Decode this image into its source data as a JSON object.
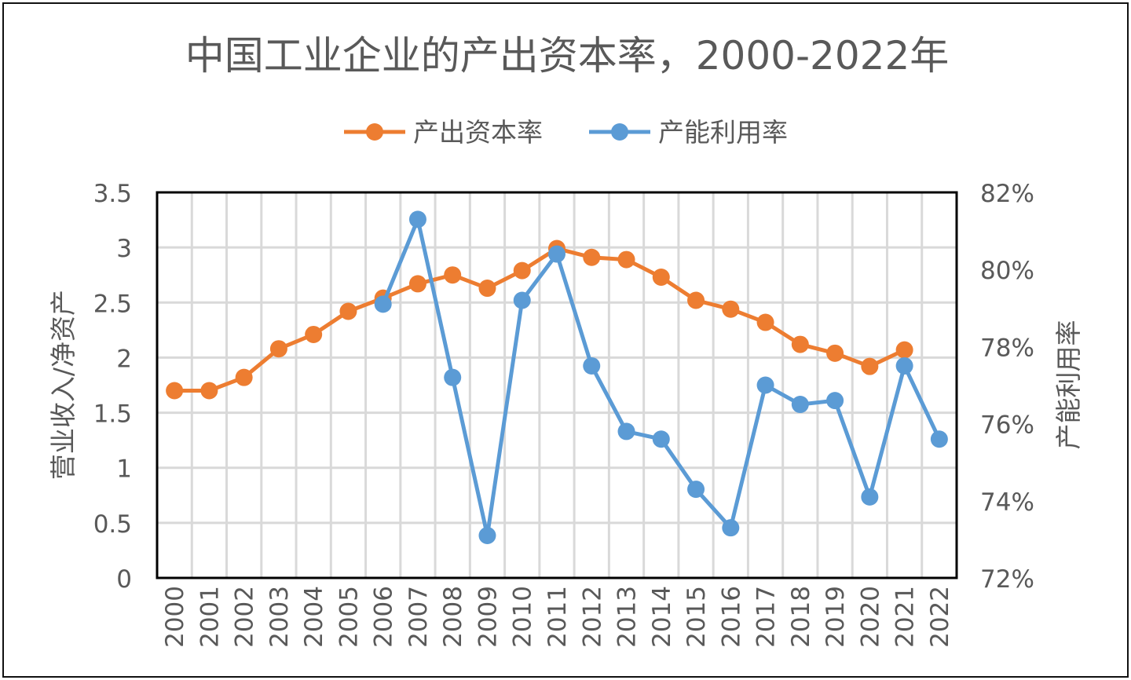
{
  "chart_data": {
    "type": "line",
    "title": "中国工业企业的产出资本率，2000-2022年",
    "categories": [
      "2000",
      "2001",
      "2002",
      "2003",
      "2004",
      "2005",
      "2006",
      "2007",
      "2008",
      "2009",
      "2010",
      "2011",
      "2012",
      "2013",
      "2014",
      "2015",
      "2016",
      "2017",
      "2018",
      "2019",
      "2020",
      "2021",
      "2022"
    ],
    "ylabel_left": "营业收入/净资产",
    "ylabel_right": "产能利用率",
    "ylim_left": [
      0,
      3.5
    ],
    "yticks_left": [
      "0",
      "0.5",
      "1",
      "1.5",
      "2",
      "2.5",
      "3",
      "3.5"
    ],
    "ylim_right": [
      72,
      82
    ],
    "yticks_right": [
      "72%",
      "74%",
      "76%",
      "78%",
      "80%",
      "82%"
    ],
    "grid": true,
    "legend_position": "top",
    "series": [
      {
        "name": "产出资本率",
        "axis": "left",
        "color": "#ED7D31",
        "values": [
          1.7,
          1.7,
          1.82,
          2.08,
          2.21,
          2.42,
          2.54,
          2.67,
          2.75,
          2.63,
          2.79,
          2.99,
          2.91,
          2.89,
          2.73,
          2.52,
          2.44,
          2.32,
          2.12,
          2.04,
          1.92,
          2.07,
          null
        ]
      },
      {
        "name": "产能利用率",
        "axis": "right",
        "color": "#5B9BD5",
        "values": [
          null,
          null,
          null,
          null,
          null,
          null,
          79.1,
          81.3,
          77.2,
          73.1,
          79.2,
          80.4,
          77.5,
          75.8,
          75.6,
          74.3,
          73.3,
          77.0,
          76.5,
          76.6,
          74.1,
          77.5,
          75.6
        ]
      }
    ]
  }
}
